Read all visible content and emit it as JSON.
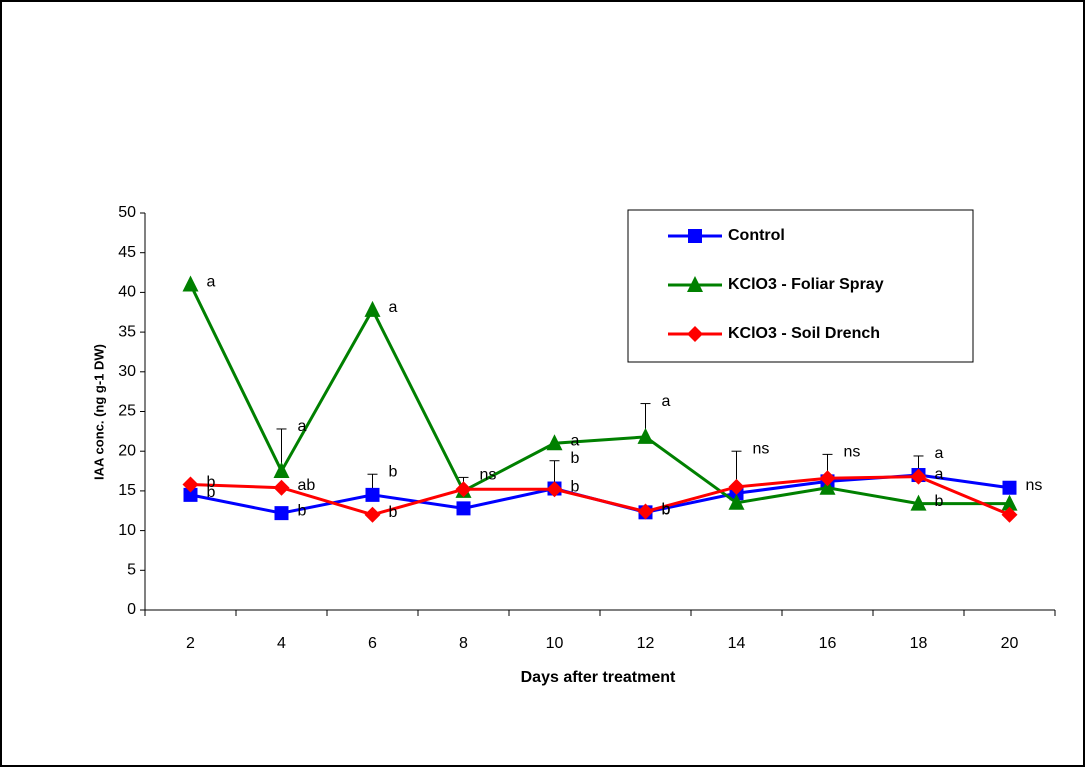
{
  "chart_data": {
    "type": "line",
    "x_label": "Days after treatment",
    "y_label": "IAA conc. (ng g-1 DW)",
    "x": [
      2,
      4,
      6,
      8,
      10,
      12,
      14,
      16,
      18,
      20
    ],
    "xlim": [
      1,
      21
    ],
    "xticks": [
      2,
      4,
      6,
      8,
      10,
      12,
      14,
      16,
      18,
      20
    ],
    "ylim": [
      0,
      50
    ],
    "yticks": [
      0,
      5,
      10,
      15,
      20,
      25,
      30,
      35,
      40,
      45,
      50
    ],
    "legend": "upper right",
    "series": [
      {
        "name": "Control",
        "color": "#0000ff",
        "marker": "square",
        "values": [
          14.5,
          12.2,
          14.5,
          12.8,
          15.3,
          12.3,
          14.7,
          16.2,
          17.0,
          15.4
        ],
        "errors": [
          null,
          null,
          2.6,
          null,
          3.5,
          null,
          null,
          null,
          2.4,
          null
        ],
        "letters": [
          "b",
          "b",
          "b",
          null,
          "b",
          "b",
          null,
          null,
          "a",
          "ns"
        ]
      },
      {
        "name": "KClO3 - Foliar Spray",
        "color": "#008000",
        "marker": "triangle",
        "values": [
          41.0,
          17.5,
          37.8,
          15.0,
          21.0,
          21.8,
          13.5,
          15.4,
          13.4,
          13.4
        ],
        "errors": [
          null,
          5.3,
          null,
          null,
          null,
          4.2,
          null,
          null,
          null,
          null
        ],
        "letters": [
          "a",
          "a",
          "a",
          null,
          "a",
          "a",
          null,
          null,
          "b",
          null
        ]
      },
      {
        "name": "KClO3 - Soil Drench",
        "color": "#ff0000",
        "marker": "diamond",
        "values": [
          15.8,
          15.4,
          12.0,
          15.2,
          15.2,
          12.4,
          15.5,
          16.6,
          16.8,
          12.0
        ],
        "errors": [
          null,
          null,
          null,
          1.5,
          null,
          null,
          4.5,
          3.0,
          null,
          null
        ],
        "letters": [
          "b",
          "ab",
          "b",
          "ns",
          "b",
          "b",
          "ns",
          "ns",
          "a",
          null
        ]
      }
    ]
  }
}
